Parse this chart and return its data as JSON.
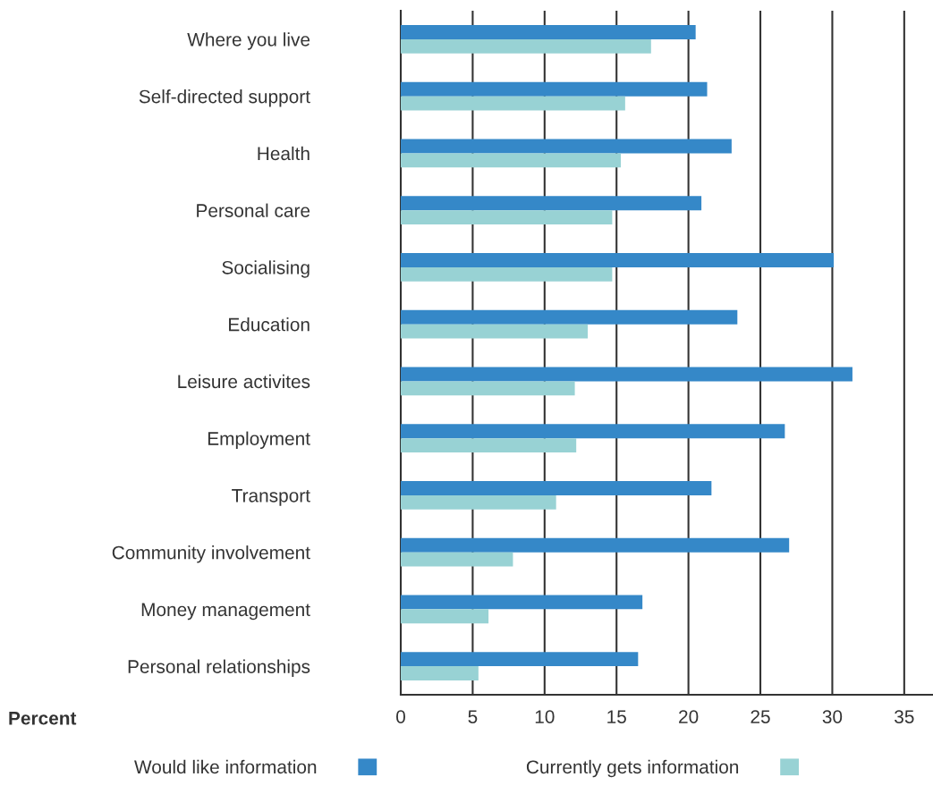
{
  "chart_data": {
    "type": "bar",
    "orientation": "horizontal",
    "annotations": [
      "Percent"
    ],
    "categories": [
      "Where you live",
      "Self-directed support",
      "Health",
      "Personal care",
      "Socialising",
      "Education",
      "Leisure activites",
      "Employment",
      "Transport",
      "Community involvement",
      "Money management",
      "Personal relationships"
    ],
    "series": [
      {
        "name": "Would like information",
        "color": "#3588c8",
        "values": [
          20.5,
          21.3,
          23.0,
          20.9,
          30.1,
          23.4,
          31.4,
          26.7,
          21.6,
          27.0,
          16.8,
          16.5
        ]
      },
      {
        "name": "Currently gets information",
        "color": "#98d2d4",
        "values": [
          17.4,
          15.6,
          15.3,
          14.7,
          14.7,
          13.0,
          12.1,
          12.2,
          10.8,
          7.8,
          6.1,
          5.4
        ]
      }
    ],
    "xlim": [
      0,
      37
    ],
    "xticks": [
      0,
      5,
      10,
      15,
      20,
      25,
      30,
      35
    ],
    "grid": "x",
    "legend": "bottom"
  }
}
